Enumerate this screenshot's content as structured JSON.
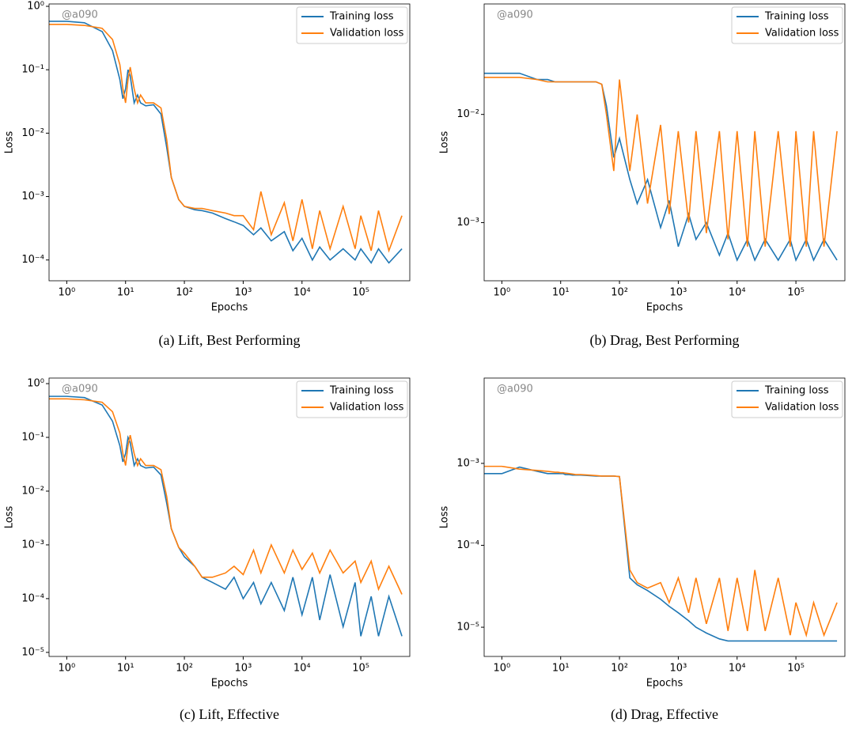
{
  "chart_data": [
    {
      "type": "line",
      "caption": "(a)  Lift, Best Performing",
      "xlabel": "Epochs",
      "ylabel": "Loss",
      "annotation": "@a090",
      "xscale": "log",
      "yscale": "log",
      "legend": "upper right",
      "xlim": [
        0.5,
        680000
      ],
      "ylim": [
        4.7e-05,
        1.09
      ],
      "xticks": [
        {
          "value": 1,
          "label": "10⁰"
        },
        {
          "value": 10,
          "label": "10¹"
        },
        {
          "value": 100,
          "label": "10²"
        },
        {
          "value": 1000,
          "label": "10³"
        },
        {
          "value": 10000,
          "label": "10⁴"
        },
        {
          "value": 100000,
          "label": "10⁵"
        }
      ],
      "yticks": [
        {
          "value": 1,
          "label": "10⁰"
        },
        {
          "value": 0.1,
          "label": "10⁻¹"
        },
        {
          "value": 0.01,
          "label": "10⁻²"
        },
        {
          "value": 0.001,
          "label": "10⁻³"
        },
        {
          "value": 0.0001,
          "label": "10⁻⁴"
        }
      ],
      "x": [
        0.5,
        1,
        2,
        4,
        6,
        8,
        9,
        10,
        11,
        12,
        14,
        16,
        18,
        22,
        30,
        40,
        50,
        60,
        80,
        100,
        150,
        200,
        300,
        500,
        700,
        1000,
        1500,
        2000,
        3000,
        5000,
        7000,
        10000,
        15000,
        20000,
        30000,
        50000,
        80000,
        100000,
        150000,
        200000,
        300000,
        500000
      ],
      "series": [
        {
          "name": "Training loss",
          "color": "#1f77b4",
          "values": [
            0.58,
            0.58,
            0.55,
            0.4,
            0.2,
            0.07,
            0.035,
            0.05,
            0.1,
            0.08,
            0.03,
            0.04,
            0.03,
            0.027,
            0.028,
            0.02,
            0.006,
            0.002,
            0.0009,
            0.0007,
            0.00062,
            0.0006,
            0.00055,
            0.00045,
            0.0004,
            0.00035,
            0.00025,
            0.00032,
            0.0002,
            0.00028,
            0.00014,
            0.00022,
            0.0001,
            0.00016,
            0.0001,
            0.00015,
            0.0001,
            0.00015,
            9e-05,
            0.00015,
            9e-05,
            0.00015
          ]
        },
        {
          "name": "Validation loss",
          "color": "#ff7f0e",
          "values": [
            0.52,
            0.52,
            0.5,
            0.45,
            0.3,
            0.12,
            0.05,
            0.03,
            0.07,
            0.11,
            0.05,
            0.03,
            0.04,
            0.03,
            0.03,
            0.025,
            0.008,
            0.002,
            0.0009,
            0.0007,
            0.00065,
            0.00065,
            0.0006,
            0.00055,
            0.0005,
            0.0005,
            0.0003,
            0.0012,
            0.00025,
            0.0008,
            0.0002,
            0.0009,
            0.00015,
            0.0006,
            0.00015,
            0.0007,
            0.00015,
            0.0005,
            0.00014,
            0.0006,
            0.00014,
            0.0005
          ]
        }
      ]
    },
    {
      "type": "line",
      "caption": "(b)  Drag, Best Performing",
      "xlabel": "Epochs",
      "ylabel": "Loss",
      "annotation": "@a090",
      "xscale": "log",
      "yscale": "log",
      "legend": "upper right",
      "xlim": [
        0.5,
        680000
      ],
      "ylim": [
        0.00029,
        0.105
      ],
      "xticks": [
        {
          "value": 1,
          "label": "10⁰"
        },
        {
          "value": 10,
          "label": "10¹"
        },
        {
          "value": 100,
          "label": "10²"
        },
        {
          "value": 1000,
          "label": "10³"
        },
        {
          "value": 10000,
          "label": "10⁴"
        },
        {
          "value": 100000,
          "label": "10⁵"
        }
      ],
      "yticks": [
        {
          "value": 0.01,
          "label": "10⁻²"
        },
        {
          "value": 0.001,
          "label": "10⁻³"
        }
      ],
      "x": [
        0.5,
        1,
        2,
        4,
        6,
        8,
        9,
        10,
        11,
        12,
        14,
        16,
        18,
        22,
        30,
        40,
        50,
        60,
        80,
        100,
        150,
        200,
        300,
        500,
        700,
        1000,
        1500,
        2000,
        3000,
        5000,
        7000,
        10000,
        15000,
        20000,
        30000,
        50000,
        80000,
        100000,
        150000,
        200000,
        300000,
        500000
      ],
      "series": [
        {
          "name": "Training loss",
          "color": "#1f77b4",
          "values": [
            0.024,
            0.024,
            0.024,
            0.021,
            0.021,
            0.02,
            0.02,
            0.02,
            0.02,
            0.02,
            0.02,
            0.02,
            0.02,
            0.02,
            0.02,
            0.02,
            0.019,
            0.012,
            0.004,
            0.006,
            0.0025,
            0.0015,
            0.0025,
            0.0009,
            0.0016,
            0.0006,
            0.0012,
            0.0007,
            0.001,
            0.0005,
            0.0008,
            0.00045,
            0.0007,
            0.00045,
            0.0007,
            0.00045,
            0.0007,
            0.00045,
            0.0007,
            0.00045,
            0.0007,
            0.00045
          ]
        },
        {
          "name": "Validation loss",
          "color": "#ff7f0e",
          "values": [
            0.022,
            0.022,
            0.022,
            0.021,
            0.02,
            0.02,
            0.02,
            0.02,
            0.02,
            0.02,
            0.02,
            0.02,
            0.02,
            0.02,
            0.02,
            0.02,
            0.019,
            0.01,
            0.003,
            0.021,
            0.003,
            0.01,
            0.0015,
            0.008,
            0.0012,
            0.007,
            0.001,
            0.007,
            0.0008,
            0.007,
            0.0007,
            0.007,
            0.0006,
            0.007,
            0.0006,
            0.007,
            0.0006,
            0.007,
            0.0006,
            0.007,
            0.0006,
            0.007
          ]
        }
      ]
    },
    {
      "type": "line",
      "caption": "(c)  Lift, Effective",
      "xlabel": "Epochs",
      "ylabel": "Loss",
      "annotation": "@a090",
      "xscale": "log",
      "yscale": "log",
      "legend": "upper right",
      "xlim": [
        0.5,
        680000
      ],
      "ylim": [
        8.4e-06,
        1.27
      ],
      "xticks": [
        {
          "value": 1,
          "label": "10⁰"
        },
        {
          "value": 10,
          "label": "10¹"
        },
        {
          "value": 100,
          "label": "10²"
        },
        {
          "value": 1000,
          "label": "10³"
        },
        {
          "value": 10000,
          "label": "10⁴"
        },
        {
          "value": 100000,
          "label": "10⁵"
        }
      ],
      "yticks": [
        {
          "value": 1,
          "label": "10⁰"
        },
        {
          "value": 0.1,
          "label": "10⁻¹"
        },
        {
          "value": 0.01,
          "label": "10⁻²"
        },
        {
          "value": 0.001,
          "label": "10⁻³"
        },
        {
          "value": 0.0001,
          "label": "10⁻⁴"
        },
        {
          "value": 1e-05,
          "label": "10⁻⁵"
        }
      ],
      "x": [
        0.5,
        1,
        2,
        4,
        6,
        8,
        9,
        10,
        11,
        12,
        14,
        16,
        18,
        22,
        30,
        40,
        50,
        60,
        80,
        100,
        150,
        200,
        300,
        500,
        700,
        1000,
        1500,
        2000,
        3000,
        5000,
        7000,
        10000,
        15000,
        20000,
        30000,
        50000,
        80000,
        100000,
        150000,
        200000,
        300000,
        500000
      ],
      "series": [
        {
          "name": "Training loss",
          "color": "#1f77b4",
          "values": [
            0.58,
            0.58,
            0.55,
            0.4,
            0.2,
            0.07,
            0.035,
            0.05,
            0.1,
            0.08,
            0.03,
            0.04,
            0.03,
            0.027,
            0.028,
            0.02,
            0.006,
            0.002,
            0.0009,
            0.0006,
            0.0004,
            0.00025,
            0.0002,
            0.00015,
            0.00025,
            0.0001,
            0.0002,
            8e-05,
            0.0002,
            6e-05,
            0.00025,
            5e-05,
            0.00025,
            4e-05,
            0.00028,
            3e-05,
            0.0002,
            2e-05,
            0.00011,
            2e-05,
            0.00011,
            2e-05
          ]
        },
        {
          "name": "Validation loss",
          "color": "#ff7f0e",
          "values": [
            0.52,
            0.52,
            0.5,
            0.45,
            0.3,
            0.12,
            0.05,
            0.03,
            0.07,
            0.11,
            0.05,
            0.03,
            0.04,
            0.03,
            0.03,
            0.025,
            0.008,
            0.002,
            0.0009,
            0.0007,
            0.0004,
            0.00025,
            0.00025,
            0.0003,
            0.0004,
            0.00028,
            0.0008,
            0.0003,
            0.001,
            0.0003,
            0.0008,
            0.00035,
            0.0007,
            0.0003,
            0.0008,
            0.0003,
            0.0005,
            0.0002,
            0.0005,
            0.00015,
            0.0004,
            0.00012
          ]
        }
      ]
    },
    {
      "type": "line",
      "caption": "(d)  Drag, Effective",
      "xlabel": "Epochs",
      "ylabel": "Loss",
      "annotation": "@a090",
      "xscale": "log",
      "yscale": "log",
      "legend": "upper right",
      "xlim": [
        0.5,
        680000
      ],
      "ylim": [
        4.4e-06,
        0.011
      ],
      "xticks": [
        {
          "value": 1,
          "label": "10⁰"
        },
        {
          "value": 10,
          "label": "10¹"
        },
        {
          "value": 100,
          "label": "10²"
        },
        {
          "value": 1000,
          "label": "10³"
        },
        {
          "value": 10000,
          "label": "10⁴"
        },
        {
          "value": 100000,
          "label": "10⁵"
        }
      ],
      "yticks": [
        {
          "value": 0.001,
          "label": "10⁻³"
        },
        {
          "value": 0.0001,
          "label": "10⁻⁴"
        },
        {
          "value": 1e-05,
          "label": "10⁻⁵"
        }
      ],
      "x": [
        0.5,
        1,
        2,
        4,
        6,
        8,
        9,
        10,
        11,
        12,
        14,
        16,
        18,
        22,
        30,
        40,
        50,
        60,
        80,
        100,
        150,
        200,
        300,
        500,
        700,
        1000,
        1500,
        2000,
        3000,
        5000,
        7000,
        10000,
        15000,
        20000,
        30000,
        50000,
        80000,
        100000,
        150000,
        200000,
        300000,
        500000
      ],
      "series": [
        {
          "name": "Training loss",
          "color": "#1f77b4",
          "values": [
            0.00075,
            0.00075,
            0.0009,
            0.0008,
            0.00075,
            0.00075,
            0.00075,
            0.00075,
            0.00075,
            0.00073,
            0.00073,
            0.00072,
            0.00072,
            0.00072,
            0.00071,
            0.0007,
            0.0007,
            0.0007,
            0.0007,
            0.00069,
            4e-05,
            3.3e-05,
            2.8e-05,
            2.2e-05,
            1.8e-05,
            1.5e-05,
            1.2e-05,
            1e-05,
            8.5e-06,
            7.2e-06,
            6.8e-06,
            6.8e-06,
            6.8e-06,
            6.8e-06,
            6.8e-06,
            6.8e-06,
            6.8e-06,
            6.8e-06,
            6.8e-06,
            6.8e-06,
            6.8e-06,
            6.8e-06
          ]
        },
        {
          "name": "Validation loss",
          "color": "#ff7f0e",
          "values": [
            0.00092,
            0.00092,
            0.00085,
            0.00082,
            0.0008,
            0.00078,
            0.00078,
            0.00077,
            0.00077,
            0.00076,
            0.00075,
            0.00074,
            0.00073,
            0.00073,
            0.00072,
            0.00071,
            0.0007,
            0.0007,
            0.0007,
            0.00069,
            5e-05,
            3.5e-05,
            3e-05,
            3.5e-05,
            2e-05,
            4e-05,
            1.5e-05,
            4e-05,
            1.1e-05,
            4e-05,
            9e-06,
            4e-05,
            9e-06,
            5e-05,
            9e-06,
            4e-05,
            8e-06,
            2e-05,
            8e-06,
            2e-05,
            8e-06,
            2e-05
          ]
        }
      ]
    }
  ]
}
